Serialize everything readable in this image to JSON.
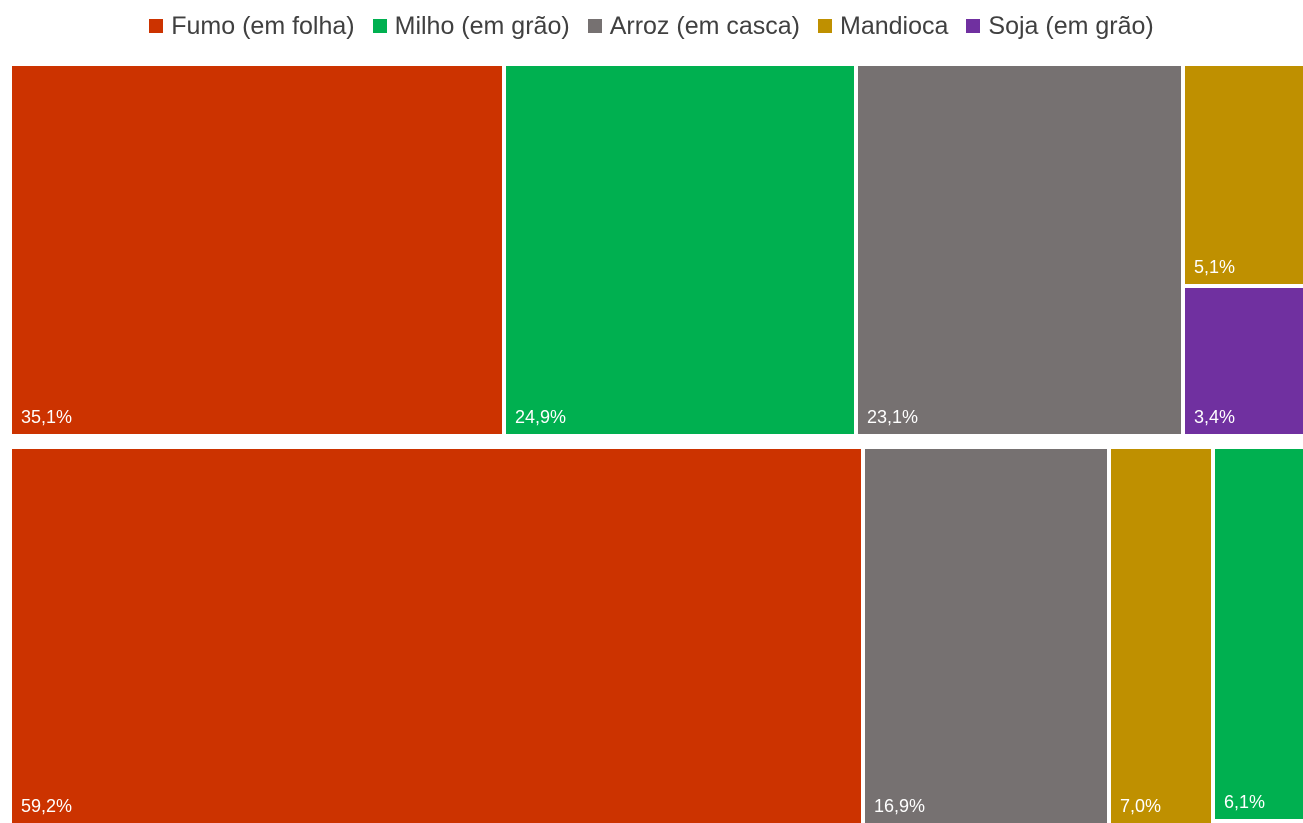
{
  "chart_data": {
    "type": "treemap",
    "legend_position": "top",
    "categories": [
      "Fumo (em folha)",
      "Milho (em grão)",
      "Arroz (em casca)",
      "Mandioca",
      "Soja (em grão)"
    ],
    "colors": {
      "Fumo (em folha)": "#cc3300",
      "Milho (em grão)": "#00b050",
      "Arroz (em casca)": "#767171",
      "Mandioca": "#bf9000",
      "Soja (em grão)": "#7030a0"
    },
    "groups": [
      {
        "values": [
          {
            "category": "Fumo (em folha)",
            "value": 35.1,
            "label": "35,1%"
          },
          {
            "category": "Milho (em grão)",
            "value": 24.9,
            "label": "24,9%"
          },
          {
            "category": "Arroz (em casca)",
            "value": 23.1,
            "label": "23,1%"
          },
          {
            "category": "Mandioca",
            "value": 5.1,
            "label": "5,1%"
          },
          {
            "category": "Soja (em grão)",
            "value": 3.4,
            "label": "3,4%"
          }
        ]
      },
      {
        "values": [
          {
            "category": "Fumo (em folha)",
            "value": 59.2,
            "label": "59,2%"
          },
          {
            "category": "Arroz (em casca)",
            "value": 16.9,
            "label": "16,9%"
          },
          {
            "category": "Mandioca",
            "value": 7.0,
            "label": "7,0%"
          },
          {
            "category": "Milho (em grão)",
            "value": 6.1,
            "label": "6,1%"
          },
          {
            "category": "Soja (em grão)",
            "value": null,
            "label": ""
          }
        ]
      }
    ]
  }
}
